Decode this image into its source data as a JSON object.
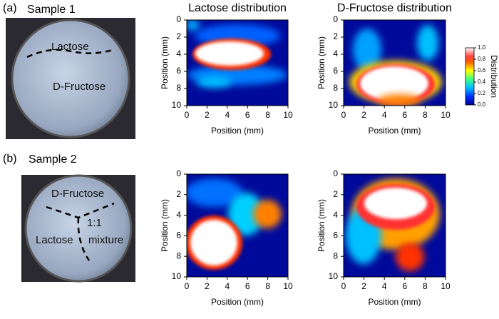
{
  "panels": [
    {
      "label": "(a)",
      "sample": "Sample 1",
      "photo_labels": [
        "Lactose",
        "D-Fructose"
      ]
    },
    {
      "label": "(b)",
      "sample": "Sample 2",
      "photo_labels": [
        "D-Fructose",
        "1:1",
        "Lactose",
        "mixture"
      ]
    }
  ],
  "chart_data": [
    {
      "type": "heatmap",
      "title": "Lactose distribution",
      "xlabel": "Position (mm)",
      "ylabel": "Position (mm)",
      "xlim": [
        0,
        10
      ],
      "ylim": [
        10,
        0
      ],
      "xticks": [
        0,
        2,
        4,
        6,
        8,
        10
      ],
      "yticks": [
        0,
        2,
        4,
        6,
        8,
        10
      ]
    },
    {
      "type": "heatmap",
      "title": "D-Fructose distribution",
      "xlabel": "Position (mm)",
      "ylabel": "Position (mm)",
      "xlim": [
        0,
        10
      ],
      "ylim": [
        10,
        0
      ],
      "xticks": [
        0,
        2,
        4,
        6,
        8,
        10
      ],
      "yticks": [
        0,
        2,
        4,
        6,
        8,
        10
      ],
      "colorbar": {
        "label": "Distribution",
        "lim": [
          0,
          1
        ],
        "ticks": [
          {
            "value": 0,
            "label": "0.0"
          },
          {
            "value": 0.2,
            "label": "0.2"
          },
          {
            "value": 0.4,
            "label": "0.4"
          },
          {
            "value": 0.6,
            "label": "0.6"
          },
          {
            "value": 0.8,
            "label": "0.8"
          },
          {
            "value": 1,
            "label": "1.0"
          }
        ]
      }
    },
    {
      "type": "heatmap",
      "xlabel": "Position (mm)",
      "ylabel": "Position (mm)",
      "xlim": [
        0,
        10
      ],
      "ylim": [
        10,
        0
      ],
      "xticks": [
        0,
        2,
        4,
        6,
        8,
        10
      ],
      "yticks": [
        0,
        2,
        4,
        6,
        8,
        10
      ]
    },
    {
      "type": "heatmap",
      "xlabel": "Position (mm)",
      "ylabel": "Position (mm)",
      "xlim": [
        0,
        10
      ],
      "ylim": [
        10,
        0
      ],
      "xticks": [
        0,
        2,
        4,
        6,
        8,
        10
      ],
      "yticks": [
        0,
        2,
        4,
        6,
        8,
        10
      ]
    }
  ]
}
